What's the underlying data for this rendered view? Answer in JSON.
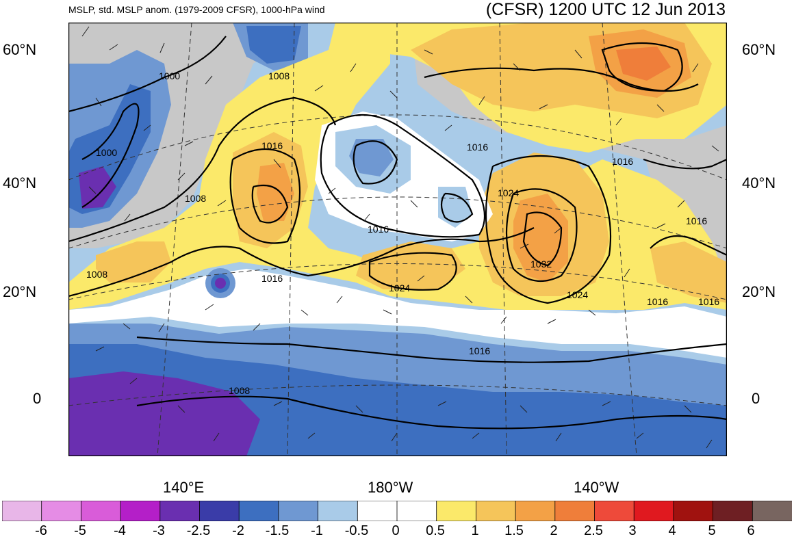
{
  "header": {
    "left_title": "MSLP, std. MSLP anom. (1979-2009 CFSR), 1000-hPa wind",
    "right_title": "(CFSR) 1200 UTC 12 Jun 2013"
  },
  "axes": {
    "lat_labels_left": [
      "60°N",
      "40°N",
      "20°N",
      "0"
    ],
    "lat_labels_right": [
      "60°N",
      "40°N",
      "20°N",
      "0"
    ],
    "lon_labels": [
      "140°E",
      "180°W",
      "140°W"
    ]
  },
  "isobar_labels": [
    "1000",
    "1008",
    "1016",
    "1000",
    "1016",
    "1016",
    "1016",
    "1008",
    "1024",
    "1016",
    "1016",
    "1032",
    "1008",
    "1016",
    "1024",
    "1024",
    "1016",
    "1016",
    "1008"
  ],
  "colorbar": {
    "labels": [
      "-6",
      "-5",
      "-4",
      "-3",
      "-2.5",
      "-2",
      "-1.5",
      "-1",
      "-0.5",
      "0",
      "0.5",
      "1",
      "1.5",
      "2",
      "2.5",
      "3",
      "4",
      "5",
      "6"
    ],
    "colors": [
      "#e8b6e8",
      "#e58ce5",
      "#d95cd9",
      "#b41fc8",
      "#6a2fb0",
      "#3a3ca8",
      "#3d6fc0",
      "#6f98d2",
      "#a9cbe8",
      "#ffffff",
      "#ffffff",
      "#fbe96a",
      "#f5c55a",
      "#f3a146",
      "#ef7e3a",
      "#ee4a3a",
      "#e0191f",
      "#a0120f",
      "#6e1f23",
      "#786560"
    ]
  },
  "colors": {
    "land": "#c8c8c8",
    "blue_mid": "#6f98d2",
    "blue_dark": "#3d6fc0",
    "purple": "#6a2fb0",
    "yellow": "#fbe96a",
    "orange_light": "#f5c55a",
    "orange": "#f3a146"
  }
}
